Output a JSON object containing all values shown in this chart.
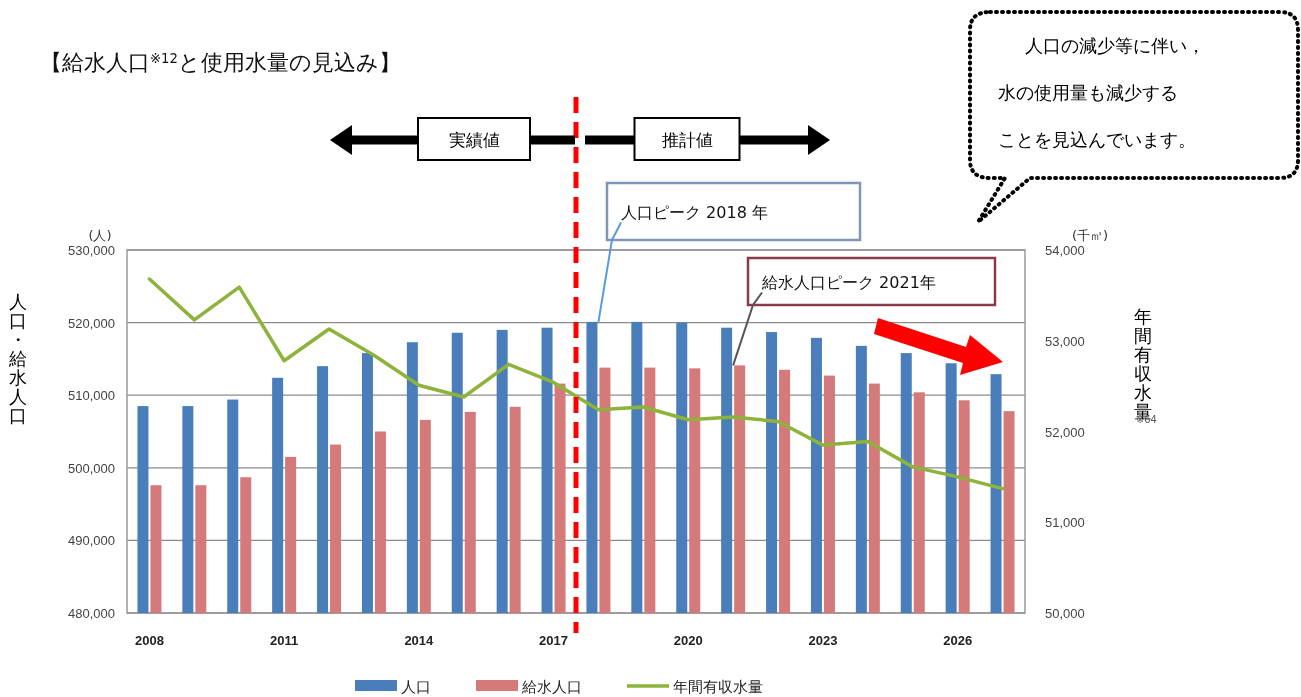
{
  "chart_data": {
    "type": "bar",
    "title": "【給水人口$^{※12}$と使用水量の見込み】",
    "ylabel": "人口・給水人口",
    "y2label": "年間有収水量$_{※64}$",
    "x": [
      2008,
      2009,
      2010,
      2011,
      2012,
      2013,
      2014,
      2015,
      2016,
      2017,
      2018,
      2019,
      2020,
      2021,
      2022,
      2023,
      2024,
      2025,
      2026,
      2027
    ],
    "xlim": [
      2007.5,
      2027.5
    ],
    "xticks": [
      2008,
      2011,
      2014,
      2017,
      2020,
      2023,
      2026
    ],
    "ylim": [
      480000,
      530000
    ],
    "yticks": [
      {
        "value": 480000,
        "label": "480,000"
      },
      {
        "value": 490000,
        "label": "490,000"
      },
      {
        "value": 500000,
        "label": "500,000"
      },
      {
        "value": 510000,
        "label": "510,000"
      },
      {
        "value": 520000,
        "label": "520,000"
      },
      {
        "value": 530000,
        "label": "530,000"
      }
    ],
    "y2lim": [
      50000,
      54000
    ],
    "y2ticks": [
      {
        "value": 50000,
        "label": "50,000"
      },
      {
        "value": 51000,
        "label": "51,000"
      },
      {
        "value": 52000,
        "label": "52,000"
      },
      {
        "value": 53000,
        "label": "53,000"
      },
      {
        "value": 54000,
        "label": "54,000"
      }
    ],
    "series": [
      {
        "name": "人口",
        "color": "#4a7ebb",
        "values": [
          508500,
          508500,
          509400,
          512400,
          514000,
          515800,
          517300,
          518600,
          519000,
          519300,
          520100,
          520100,
          520000,
          519300,
          518700,
          517900,
          516800,
          515800,
          514400,
          512900
        ]
      },
      {
        "name": "給水人口",
        "color": "#d47a7a",
        "values": [
          497600,
          497600,
          498700,
          501500,
          503200,
          505000,
          506600,
          507700,
          508400,
          511600,
          513800,
          513800,
          513700,
          514100,
          513500,
          512700,
          511600,
          510400,
          509300,
          507800
        ]
      },
      {
        "name": "年間有収水量",
        "type": "line",
        "axis": "y2",
        "color": "#8db33a",
        "values": [
          53680,
          53230,
          53590,
          52780,
          53130,
          52840,
          52510,
          52380,
          52740,
          52540,
          52240,
          52270,
          52130,
          52160,
          52110,
          51850,
          51890,
          51610,
          51500,
          51370
        ]
      }
    ],
    "line_style": "solid",
    "grid": "y",
    "legend": "bottom",
    "ref_lines": [
      {
        "axis": "x",
        "value": 2017.5,
        "color": "#ff0000",
        "line_style": "dashed"
      }
    ],
    "annotations": [
      "(人)",
      "(千㎥)",
      "実績値",
      "推計値",
      {
        "text": "人口ピーク  2018 年",
        "x": 2018,
        "y": 520100
      },
      {
        "text": "給水人口ピーク 2021年",
        "x": 2021,
        "y": 514100
      },
      "人口の減少等に伴い，",
      "水の使用量も減少する",
      "ことを見込んでいます。"
    ]
  }
}
